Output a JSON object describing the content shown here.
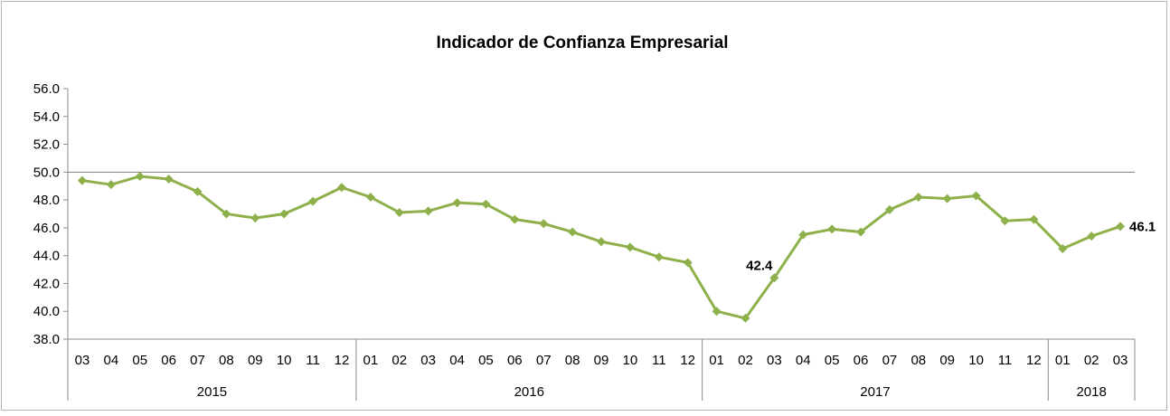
{
  "chart_data": {
    "type": "line",
    "title": "Indicador de Confianza Empresarial",
    "ylim": [
      38.0,
      56.0
    ],
    "y_ticks": [
      "56.0",
      "54.0",
      "52.0",
      "50.0",
      "48.0",
      "46.0",
      "44.0",
      "42.0",
      "40.0",
      "38.0"
    ],
    "reference_line": 50.0,
    "grid": false,
    "series_color": "#8eb04a",
    "months": [
      "03",
      "04",
      "05",
      "06",
      "07",
      "08",
      "09",
      "10",
      "11",
      "12",
      "01",
      "02",
      "03",
      "04",
      "05",
      "06",
      "07",
      "08",
      "09",
      "10",
      "11",
      "12",
      "01",
      "02",
      "03",
      "04",
      "05",
      "06",
      "07",
      "08",
      "09",
      "10",
      "11",
      "12",
      "01",
      "02",
      "03"
    ],
    "years": [
      {
        "label": "2015",
        "count": 10
      },
      {
        "label": "2016",
        "count": 12
      },
      {
        "label": "2017",
        "count": 12
      },
      {
        "label": "2018",
        "count": 3
      }
    ],
    "values": [
      49.4,
      49.1,
      49.7,
      49.5,
      48.6,
      47.0,
      46.7,
      47.0,
      47.9,
      48.9,
      48.2,
      47.1,
      47.2,
      47.8,
      47.7,
      46.6,
      46.3,
      45.7,
      45.0,
      44.6,
      43.9,
      43.5,
      40.0,
      39.5,
      42.4,
      45.5,
      45.9,
      45.7,
      47.3,
      48.2,
      48.1,
      48.3,
      46.5,
      46.6,
      44.5,
      45.4,
      46.1
    ],
    "data_labels": [
      {
        "index": 24,
        "text": "42.4"
      },
      {
        "index": 36,
        "text": "46.1"
      }
    ]
  }
}
